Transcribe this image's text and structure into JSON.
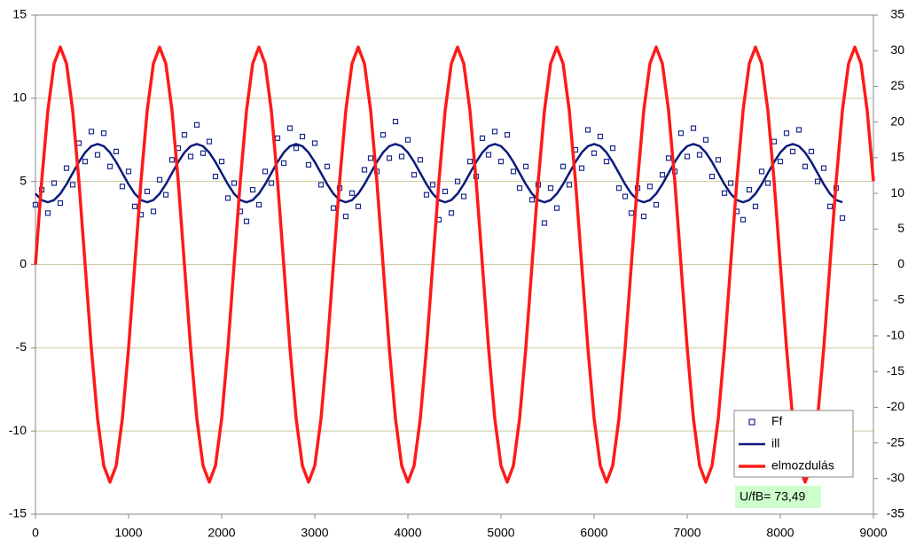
{
  "chart_data": {
    "type": "line",
    "xlim": [
      0,
      9000
    ],
    "xticks": [
      0,
      1000,
      2000,
      3000,
      4000,
      5000,
      6000,
      7000,
      8000,
      9000
    ],
    "ylim": [
      -15,
      15
    ],
    "yticks": [
      -15,
      -10,
      -5,
      0,
      5,
      10,
      15
    ],
    "y2lim": [
      -35,
      35
    ],
    "y2ticks": [
      -35,
      -30,
      -25,
      -20,
      -15,
      -10,
      -5,
      0,
      5,
      10,
      15,
      20,
      25,
      30,
      35
    ],
    "grid": true,
    "legend": "lower right",
    "annotation": "U/fB= 73,49",
    "x": [
      0,
      66.7,
      133.3,
      200,
      266.7,
      333.3,
      400,
      466.7,
      533.3,
      600,
      666.7,
      733.3,
      800,
      866.7,
      933.3,
      1000,
      1066.7,
      1133.3,
      1200,
      1266.7,
      1333.3,
      1400,
      1466.7,
      1533.3,
      1600,
      1666.7,
      1733.3,
      1800,
      1866.7,
      1933.3,
      2000,
      2066.7,
      2133.3,
      2200,
      2266.7,
      2333.3,
      2400,
      2466.7,
      2533.3,
      2600,
      2666.7,
      2733.3,
      2800,
      2866.7,
      2933.3,
      3000,
      3066.7,
      3133.3,
      3200,
      3266.7,
      3333.3,
      3400,
      3466.7,
      3533.3,
      3600,
      3666.7,
      3733.3,
      3800,
      3866.7,
      3933.3,
      4000,
      4066.7,
      4133.3,
      4200,
      4266.7,
      4333.3,
      4400,
      4466.7,
      4533.3,
      4600,
      4666.7,
      4733.3,
      4800,
      4866.7,
      4933.3,
      5000,
      5066.7,
      5133.3,
      5200,
      5266.7,
      5333.3,
      5400,
      5466.7,
      5533.3,
      5600,
      5666.7,
      5733.3,
      5800,
      5866.7,
      5933.3,
      6000,
      6066.7,
      6133.3,
      6200,
      6266.7,
      6333.3,
      6400,
      6466.7,
      6533.3,
      6600,
      6666.7,
      6733.3,
      6800,
      6866.7,
      6933.3,
      7000,
      7066.7,
      7133.3,
      7200,
      7266.7,
      7333.3,
      7400,
      7466.7,
      7533.3,
      7600,
      7666.7,
      7733.3,
      7800,
      7866.7,
      7933.3,
      8000,
      8066.7,
      8133.3,
      8200,
      8266.7,
      8333.3,
      8400,
      8466.7,
      8533.3,
      8600,
      8666.7,
      8733.3,
      8800,
      8866.7,
      8933.3,
      9000
    ],
    "series": [
      {
        "name": "Ff",
        "kind": "scatter",
        "color": "#1a2a8c",
        "values": [
          3.6,
          4.5,
          3.1,
          4.9,
          3.7,
          5.8,
          4.8,
          7.3,
          6.2,
          8.0,
          6.6,
          7.9,
          5.9,
          6.8,
          4.7,
          5.6,
          3.5,
          3.0,
          4.4,
          3.2,
          5.1,
          4.2,
          6.3,
          7.0,
          7.8,
          6.5,
          8.4,
          6.7,
          7.4,
          5.3,
          6.2,
          4.0,
          4.9,
          3.2,
          2.6,
          4.5,
          3.6,
          5.6,
          4.9,
          7.6,
          6.1,
          8.2,
          7.0,
          7.7,
          6.0,
          7.3,
          4.8,
          5.9,
          3.4,
          4.6,
          2.9,
          4.3,
          3.5,
          5.7,
          6.4,
          5.6,
          7.8,
          6.4,
          8.6,
          6.5,
          7.5,
          5.4,
          6.3,
          4.2,
          4.8,
          2.7,
          4.4,
          3.1,
          5.0,
          4.1,
          6.2,
          5.3,
          7.6,
          6.6,
          8.0,
          6.2,
          7.8,
          5.6,
          4.6,
          5.9,
          3.9,
          4.8,
          2.5,
          4.6,
          3.4,
          5.9,
          4.8,
          6.9,
          5.8,
          8.1,
          6.7,
          7.7,
          6.2,
          7.0,
          4.6,
          4.1,
          3.1,
          4.6,
          2.9,
          4.7,
          3.6,
          5.4,
          6.4,
          5.6,
          7.9,
          6.5,
          8.2,
          6.6,
          7.5,
          5.3,
          6.3,
          4.3,
          4.9,
          3.2,
          2.7,
          4.5,
          3.5,
          5.6,
          4.9,
          7.4,
          6.2,
          7.9,
          6.8,
          8.1,
          5.9,
          6.8,
          5.0,
          5.8,
          3.5,
          4.6,
          2.8,
          null,
          null,
          null,
          null,
          null
        ]
      },
      {
        "name": "ill",
        "kind": "line",
        "color": "#0a1a7a",
        "values": [
          4.26,
          3.88,
          3.75,
          3.88,
          4.26,
          4.83,
          5.5,
          6.17,
          6.74,
          7.12,
          7.25,
          7.12,
          6.74,
          6.17,
          5.5,
          4.83,
          4.26,
          3.88,
          3.75,
          3.88,
          4.26,
          4.83,
          5.5,
          6.17,
          6.74,
          7.12,
          7.25,
          7.12,
          6.74,
          6.17,
          5.5,
          4.83,
          4.26,
          3.88,
          3.75,
          3.88,
          4.26,
          4.83,
          5.5,
          6.17,
          6.74,
          7.12,
          7.25,
          7.12,
          6.74,
          6.17,
          5.5,
          4.83,
          4.26,
          3.88,
          3.75,
          3.88,
          4.26,
          4.83,
          5.5,
          6.17,
          6.74,
          7.12,
          7.25,
          7.12,
          6.74,
          6.17,
          5.5,
          4.83,
          4.26,
          3.88,
          3.75,
          3.88,
          4.26,
          4.83,
          5.5,
          6.17,
          6.74,
          7.12,
          7.25,
          7.12,
          6.74,
          6.17,
          5.5,
          4.83,
          4.26,
          3.88,
          3.75,
          3.88,
          4.26,
          4.83,
          5.5,
          6.17,
          6.74,
          7.12,
          7.25,
          7.12,
          6.74,
          6.17,
          5.5,
          4.83,
          4.26,
          3.88,
          3.75,
          3.88,
          4.26,
          4.83,
          5.5,
          6.17,
          6.74,
          7.12,
          7.25,
          7.12,
          6.74,
          6.17,
          5.5,
          4.83,
          4.26,
          3.88,
          3.75,
          3.88,
          4.26,
          4.83,
          5.5,
          6.17,
          6.74,
          7.12,
          7.25,
          7.12,
          6.74,
          6.17,
          5.5,
          4.83,
          4.26,
          3.88,
          3.75,
          null,
          null,
          null,
          null,
          null
        ]
      },
      {
        "name": "elmozdulás",
        "kind": "line",
        "axis": "y2",
        "color": "#ff1a1a",
        "values": [
          0,
          11.7,
          21.6,
          28.2,
          30.5,
          28.2,
          21.6,
          11.7,
          0,
          -11.7,
          -21.6,
          -28.2,
          -30.5,
          -28.2,
          -21.6,
          -11.7,
          0,
          11.7,
          21.6,
          28.2,
          30.5,
          28.2,
          21.6,
          11.7,
          0,
          -11.7,
          -21.6,
          -28.2,
          -30.5,
          -28.2,
          -21.6,
          -11.7,
          0,
          11.7,
          21.6,
          28.2,
          30.5,
          28.2,
          21.6,
          11.7,
          0,
          -11.7,
          -21.6,
          -28.2,
          -30.5,
          -28.2,
          -21.6,
          -11.7,
          0,
          11.7,
          21.6,
          28.2,
          30.5,
          28.2,
          21.6,
          11.7,
          0,
          -11.7,
          -21.6,
          -28.2,
          -30.5,
          -28.2,
          -21.6,
          -11.7,
          0,
          11.7,
          21.6,
          28.2,
          30.5,
          28.2,
          21.6,
          11.7,
          0,
          -11.7,
          -21.6,
          -28.2,
          -30.5,
          -28.2,
          -21.6,
          -11.7,
          0,
          11.7,
          21.6,
          28.2,
          30.5,
          28.2,
          21.6,
          11.7,
          0,
          -11.7,
          -21.6,
          -28.2,
          -30.5,
          -28.2,
          -21.6,
          -11.7,
          0,
          11.7,
          21.6,
          28.2,
          30.5,
          28.2,
          21.6,
          11.7,
          0,
          -11.7,
          -21.6,
          -28.2,
          -30.5,
          -28.2,
          -21.6,
          -11.7,
          0,
          11.7,
          21.6,
          28.2,
          30.5,
          28.2,
          21.6,
          11.7,
          0,
          -11.7,
          -21.6,
          -28.2,
          -30.5,
          -28.2,
          -21.6,
          -11.7,
          0,
          11.7,
          21.6,
          28.2,
          30.5,
          28.2,
          21.6,
          11.7
        ]
      }
    ]
  }
}
